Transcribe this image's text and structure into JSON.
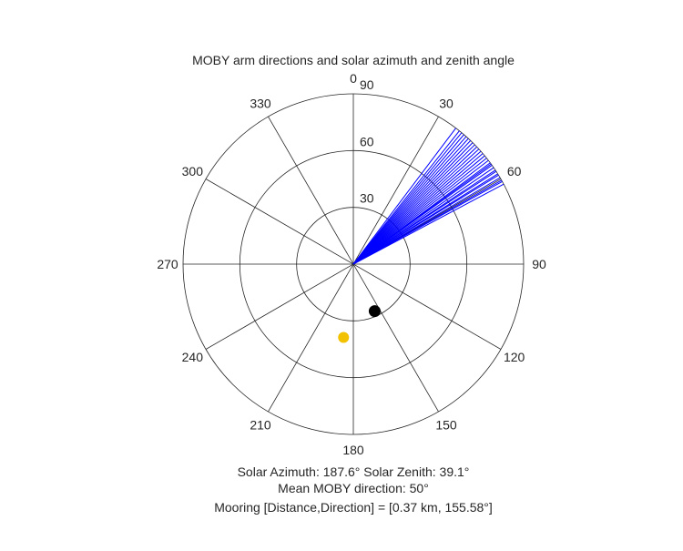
{
  "chart_data": {
    "type": "polar",
    "title": "MOBY arm directions and solar azimuth and zenith angle",
    "angle_zero": "top",
    "angle_direction": "clockwise",
    "angle_ticks": [
      0,
      30,
      60,
      90,
      120,
      150,
      180,
      210,
      240,
      270,
      300,
      330
    ],
    "angle_tick_labels": [
      "0",
      "30",
      "60",
      "90",
      "120",
      "150",
      "180",
      "210",
      "240",
      "270",
      "300",
      "330"
    ],
    "radial_max": 90,
    "radial_ticks": [
      30,
      60,
      90
    ],
    "radial_tick_labels": [
      "30",
      "60",
      "90"
    ],
    "grid": true,
    "series": [
      {
        "kind": "lines",
        "color": "#0000ff",
        "radius": 90,
        "directions": [
          37,
          38.5,
          39.5,
          40.5,
          41.5,
          42.5,
          43.5,
          44.5,
          45.5,
          46.5,
          47.5,
          48.5,
          49.5,
          50.5,
          51.5,
          52.5,
          53.5,
          54,
          54.5,
          55.5,
          56.5,
          57,
          58,
          58.5,
          59.5,
          60.5,
          61,
          62
        ]
      },
      {
        "kind": "point",
        "color": "#000000",
        "azimuth": 155.58,
        "radius": 27.3
      },
      {
        "kind": "point",
        "color": "#f2c200",
        "azimuth": 187.6,
        "radius": 39.1
      }
    ],
    "annotations": [
      "Solar Azimuth: 187.6°    Solar Zenith: 39.1°",
      "Mean MOBY direction: 50°",
      "Mooring [Distance,Direction] = [0.37 km, 155.58°]"
    ]
  }
}
